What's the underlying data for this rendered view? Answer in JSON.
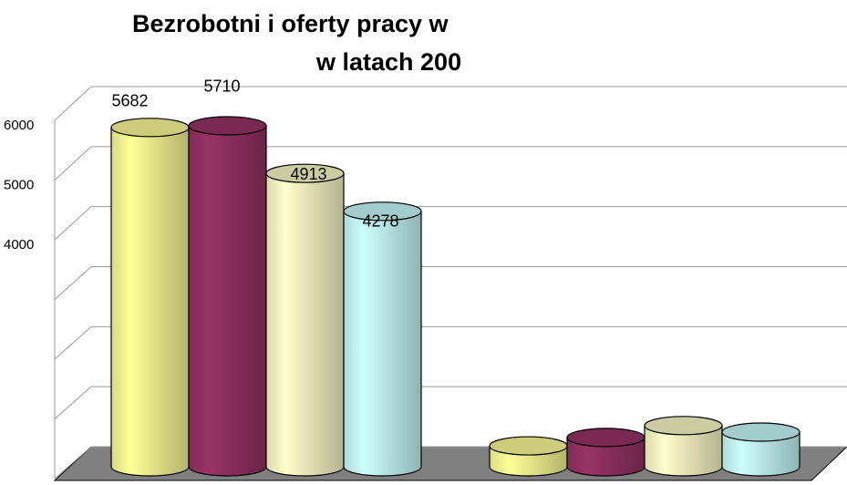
{
  "chart_data": {
    "type": "bar3d",
    "title": "Bezrobotni i oferty pracy w",
    "subtitle": "w latach 200",
    "categories": [
      null,
      null
    ],
    "series": [
      {
        "color": "#ffff99",
        "values": [
          5682,
          350
        ]
      },
      {
        "color": "#993366",
        "values": [
          5710,
          490
        ]
      },
      {
        "color": "#ffffcc",
        "values": [
          4913,
          690
        ]
      },
      {
        "color": "#ccffff",
        "values": [
          4278,
          580
        ]
      }
    ],
    "ylim": [
      0,
      6000
    ],
    "yticks": [
      {
        "value": 0,
        "label": null
      },
      {
        "value": 1000,
        "label": null
      },
      {
        "value": 2000,
        "label": null
      },
      {
        "value": 3000,
        "label": null
      },
      4000,
      5000,
      6000
    ],
    "grid": true
  }
}
